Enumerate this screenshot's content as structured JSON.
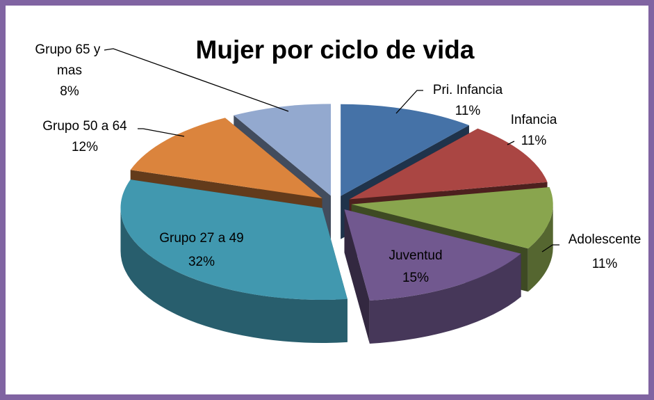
{
  "chart_data": {
    "type": "pie3d",
    "title": "Mujer por ciclo de vida",
    "categories": [
      "Pri. Infancia",
      "Infancia",
      "Adolescente",
      "Juventud",
      "Grupo 27 a 49",
      "Grupo 50 a 64",
      "Grupo 65 y mas"
    ],
    "values": [
      11,
      11,
      11,
      15,
      32,
      12,
      8
    ],
    "value_labels": [
      "11%",
      "11%",
      "11%",
      "15%",
      "32%",
      "12%",
      "8%"
    ],
    "colors": [
      "#4572a7",
      "#aa4643",
      "#89a54e",
      "#71588f",
      "#4198af",
      "#db843d",
      "#93a9cf"
    ]
  }
}
